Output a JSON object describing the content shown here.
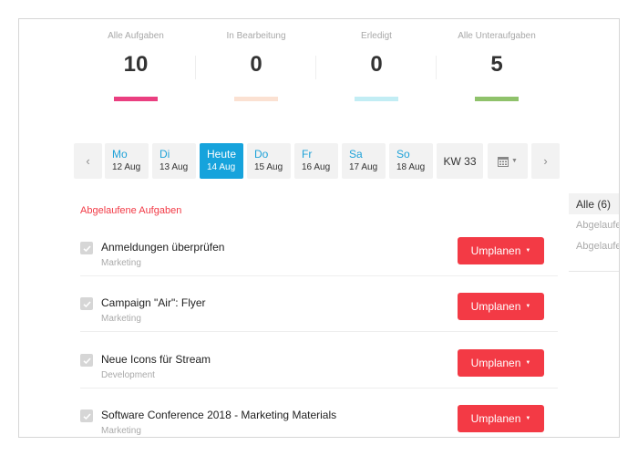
{
  "stats": [
    {
      "label": "Alle Aufgaben",
      "value": "10",
      "color": "#ea3f80"
    },
    {
      "label": "In Bearbeitung",
      "value": "0",
      "color": "#fbe1d2"
    },
    {
      "label": "Erledigt",
      "value": "0",
      "color": "#c2edf4"
    },
    {
      "label": "Alle Unteraufgaben",
      "value": "5",
      "color": "#8fc26b"
    }
  ],
  "days": [
    {
      "name": "Mo",
      "date": "12 Aug"
    },
    {
      "name": "Di",
      "date": "13 Aug"
    },
    {
      "name": "Heute",
      "date": "14 Aug"
    },
    {
      "name": "Do",
      "date": "15 Aug"
    },
    {
      "name": "Fr",
      "date": "16 Aug"
    },
    {
      "name": "Sa",
      "date": "17 Aug"
    },
    {
      "name": "So",
      "date": "18 Aug"
    }
  ],
  "week_label": "KW 33",
  "section_title": "Abgelaufene Aufgaben",
  "tasks": [
    {
      "title": "Anmeldungen überprüfen",
      "category": "Marketing",
      "action": "Umplanen"
    },
    {
      "title": "Campaign \"Air\": Flyer",
      "category": "Marketing",
      "action": "Umplanen"
    },
    {
      "title": "Neue Icons für Stream",
      "category": "Development",
      "action": "Umplanen"
    },
    {
      "title": "Software Conference 2018 - Marketing Materials",
      "category": "Marketing",
      "action": "Umplanen"
    }
  ],
  "right_panel": {
    "active": "Alle (6)",
    "items": [
      "Abgelaufen",
      "Abgelaufen"
    ]
  },
  "colors": {
    "accent_blue": "#16a3dc",
    "danger_red": "#f33a45"
  }
}
